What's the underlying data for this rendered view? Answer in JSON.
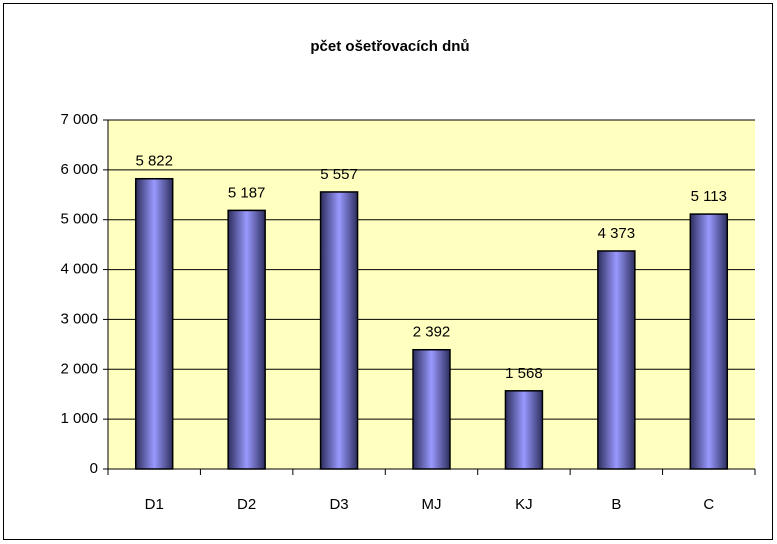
{
  "chart_data": {
    "type": "bar",
    "title": "pčet ošetřovacích dnů",
    "categories": [
      "D1",
      "D2",
      "D3",
      "MJ",
      "KJ",
      "B",
      "C"
    ],
    "values": [
      5822,
      5187,
      5557,
      2392,
      1568,
      4373,
      5113
    ],
    "value_labels": [
      "5 822",
      "5 187",
      "5 557",
      "2 392",
      "1 568",
      "4 373",
      "5 113"
    ],
    "color": "#9999ff",
    "ylim": [
      0,
      7000
    ],
    "yticks": [
      0,
      {
        "value": 1000,
        "label": "1 000"
      },
      {
        "value": 2000,
        "label": "2 000"
      },
      {
        "value": 3000,
        "label": "3 000"
      },
      {
        "value": 4000,
        "label": "4 000"
      },
      {
        "value": 5000,
        "label": "5 000"
      },
      {
        "value": 6000,
        "label": "6 000"
      },
      {
        "value": 7000,
        "label": "7 000"
      }
    ],
    "grid": true
  }
}
